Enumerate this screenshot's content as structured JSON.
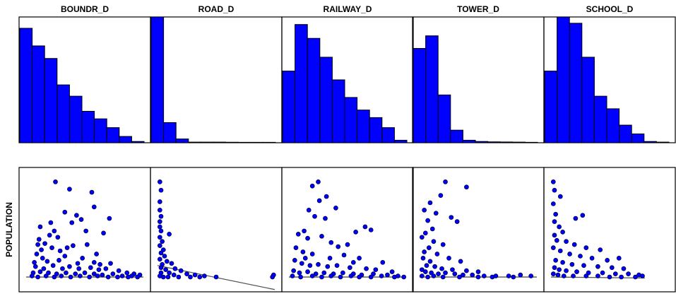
{
  "chart_data": {
    "type": "scatter",
    "variables": [
      "BOUNDR_D",
      "ROAD_D",
      "RAILWAY_D",
      "TOWER_D",
      "SCHOOL_D"
    ],
    "ylabel": "POPULATION",
    "grid": false,
    "colors": {
      "fill": "#0000ff",
      "stroke": "#000033",
      "trend": "#555555"
    },
    "histograms": [
      {
        "name": "BOUNDR_D",
        "bin_heights": [
          0.91,
          0.77,
          0.67,
          0.46,
          0.37,
          0.25,
          0.19,
          0.12,
          0.05,
          0.01
        ]
      },
      {
        "name": "ROAD_D",
        "bin_heights": [
          1.0,
          0.16,
          0.03,
          0.005,
          0.005,
          0.005,
          0.004,
          0.003,
          0.003,
          0.002
        ]
      },
      {
        "name": "RAILWAY_D",
        "bin_heights": [
          0.57,
          0.94,
          0.83,
          0.68,
          0.5,
          0.36,
          0.26,
          0.2,
          0.12,
          0.02
        ]
      },
      {
        "name": "TOWER_D",
        "bin_heights": [
          0.75,
          0.85,
          0.38,
          0.1,
          0.02,
          0.01,
          0.007,
          0.006,
          0.005,
          0.003
        ]
      },
      {
        "name": "SCHOOL_D",
        "bin_heights": [
          0.57,
          1.0,
          0.95,
          0.68,
          0.37,
          0.27,
          0.14,
          0.07,
          0.01,
          0.005
        ]
      }
    ],
    "scatter_plots": [
      {
        "name": "BOUNDR_D",
        "trend": [
          [
            0.0,
            0.02
          ],
          [
            1.0,
            0.02
          ]
        ],
        "points": [
          [
            0.25,
            0.93
          ],
          [
            0.37,
            0.86
          ],
          [
            0.56,
            0.83
          ],
          [
            0.58,
            0.69
          ],
          [
            0.33,
            0.64
          ],
          [
            0.43,
            0.61
          ],
          [
            0.47,
            0.57
          ],
          [
            0.71,
            0.58
          ],
          [
            0.21,
            0.54
          ],
          [
            0.12,
            0.5
          ],
          [
            0.24,
            0.46
          ],
          [
            0.39,
            0.54
          ],
          [
            0.2,
            0.42
          ],
          [
            0.11,
            0.38
          ],
          [
            0.16,
            0.34
          ],
          [
            0.27,
            0.4
          ],
          [
            0.51,
            0.46
          ],
          [
            0.66,
            0.44
          ],
          [
            0.22,
            0.3
          ],
          [
            0.29,
            0.27
          ],
          [
            0.13,
            0.28
          ],
          [
            0.4,
            0.32
          ],
          [
            0.52,
            0.33
          ],
          [
            0.14,
            0.2
          ],
          [
            0.09,
            0.24
          ],
          [
            0.18,
            0.17
          ],
          [
            0.33,
            0.22
          ],
          [
            0.48,
            0.2
          ],
          [
            0.58,
            0.16
          ],
          [
            0.72,
            0.15
          ],
          [
            0.08,
            0.12
          ],
          [
            0.15,
            0.1
          ],
          [
            0.23,
            0.13
          ],
          [
            0.31,
            0.1
          ],
          [
            0.37,
            0.12
          ],
          [
            0.45,
            0.1
          ],
          [
            0.55,
            0.11
          ],
          [
            0.62,
            0.09
          ],
          [
            0.68,
            0.1
          ],
          [
            0.79,
            0.08
          ],
          [
            0.86,
            0.06
          ],
          [
            0.92,
            0.05
          ],
          [
            0.97,
            0.04
          ],
          [
            0.06,
            0.06
          ],
          [
            0.12,
            0.07
          ],
          [
            0.19,
            0.06
          ],
          [
            0.26,
            0.05
          ],
          [
            0.34,
            0.06
          ],
          [
            0.42,
            0.05
          ],
          [
            0.5,
            0.06
          ],
          [
            0.58,
            0.05
          ],
          [
            0.65,
            0.04
          ],
          [
            0.74,
            0.05
          ],
          [
            0.82,
            0.03
          ],
          [
            0.9,
            0.03
          ],
          [
            0.05,
            0.03
          ],
          [
            0.1,
            0.02
          ],
          [
            0.17,
            0.03
          ],
          [
            0.24,
            0.02
          ],
          [
            0.3,
            0.03
          ],
          [
            0.38,
            0.02
          ],
          [
            0.46,
            0.03
          ],
          [
            0.54,
            0.02
          ],
          [
            0.61,
            0.03
          ],
          [
            0.7,
            0.02
          ],
          [
            0.78,
            0.02
          ],
          [
            0.87,
            0.02
          ],
          [
            0.95,
            0.02
          ],
          [
            0.07,
            0.16
          ],
          [
            0.28,
            0.18
          ],
          [
            0.44,
            0.15
          ],
          [
            0.63,
            0.14
          ],
          [
            0.35,
            0.3
          ],
          [
            0.1,
            0.33
          ],
          [
            0.6,
            0.24
          ]
        ]
      },
      {
        "name": "ROAD_D",
        "trend": [
          [
            0.0,
            0.13
          ],
          [
            1.0,
            -0.1
          ]
        ],
        "points": [
          [
            0.02,
            0.93
          ],
          [
            0.03,
            0.85
          ],
          [
            0.02,
            0.74
          ],
          [
            0.02,
            0.66
          ],
          [
            0.03,
            0.6
          ],
          [
            0.02,
            0.55
          ],
          [
            0.1,
            0.43
          ],
          [
            0.02,
            0.5
          ],
          [
            0.03,
            0.46
          ],
          [
            0.02,
            0.4
          ],
          [
            0.04,
            0.36
          ],
          [
            0.02,
            0.32
          ],
          [
            0.05,
            0.28
          ],
          [
            0.03,
            0.25
          ],
          [
            0.06,
            0.22
          ],
          [
            0.02,
            0.19
          ],
          [
            0.08,
            0.17
          ],
          [
            0.12,
            0.15
          ],
          [
            0.04,
            0.14
          ],
          [
            0.15,
            0.1
          ],
          [
            0.03,
            0.11
          ],
          [
            0.07,
            0.09
          ],
          [
            0.2,
            0.08
          ],
          [
            0.1,
            0.06
          ],
          [
            0.25,
            0.05
          ],
          [
            0.03,
            0.06
          ],
          [
            0.14,
            0.04
          ],
          [
            0.32,
            0.04
          ],
          [
            0.4,
            0.03
          ],
          [
            0.02,
            0.03
          ],
          [
            0.05,
            0.02
          ],
          [
            0.09,
            0.02
          ],
          [
            0.18,
            0.02
          ],
          [
            0.28,
            0.02
          ],
          [
            0.36,
            0.02
          ],
          [
            0.5,
            0.02
          ],
          [
            0.99,
            0.04
          ],
          [
            0.98,
            0.02
          ]
        ]
      },
      {
        "name": "RAILWAY_D",
        "trend": [
          [
            0.0,
            0.02
          ],
          [
            1.0,
            0.02
          ]
        ],
        "points": [
          [
            0.25,
            0.93
          ],
          [
            0.2,
            0.89
          ],
          [
            0.32,
            0.79
          ],
          [
            0.26,
            0.75
          ],
          [
            0.4,
            0.68
          ],
          [
            0.17,
            0.66
          ],
          [
            0.22,
            0.6
          ],
          [
            0.31,
            0.58
          ],
          [
            0.65,
            0.5
          ],
          [
            0.7,
            0.47
          ],
          [
            0.57,
            0.45
          ],
          [
            0.13,
            0.46
          ],
          [
            0.08,
            0.43
          ],
          [
            0.16,
            0.39
          ],
          [
            0.28,
            0.41
          ],
          [
            0.36,
            0.35
          ],
          [
            0.42,
            0.31
          ],
          [
            0.5,
            0.33
          ],
          [
            0.06,
            0.3
          ],
          [
            0.12,
            0.26
          ],
          [
            0.2,
            0.24
          ],
          [
            0.47,
            0.23
          ],
          [
            0.6,
            0.2
          ],
          [
            0.8,
            0.16
          ],
          [
            0.05,
            0.18
          ],
          [
            0.11,
            0.15
          ],
          [
            0.18,
            0.13
          ],
          [
            0.25,
            0.14
          ],
          [
            0.33,
            0.12
          ],
          [
            0.41,
            0.13
          ],
          [
            0.52,
            0.11
          ],
          [
            0.66,
            0.1
          ],
          [
            0.74,
            0.09
          ],
          [
            0.88,
            0.07
          ],
          [
            0.04,
            0.08
          ],
          [
            0.09,
            0.06
          ],
          [
            0.16,
            0.07
          ],
          [
            0.23,
            0.05
          ],
          [
            0.3,
            0.06
          ],
          [
            0.38,
            0.05
          ],
          [
            0.46,
            0.06
          ],
          [
            0.55,
            0.05
          ],
          [
            0.62,
            0.04
          ],
          [
            0.72,
            0.05
          ],
          [
            0.84,
            0.04
          ],
          [
            0.93,
            0.03
          ],
          [
            0.98,
            0.02
          ],
          [
            0.03,
            0.03
          ],
          [
            0.1,
            0.02
          ],
          [
            0.2,
            0.03
          ],
          [
            0.28,
            0.02
          ],
          [
            0.36,
            0.03
          ],
          [
            0.44,
            0.02
          ],
          [
            0.53,
            0.03
          ],
          [
            0.6,
            0.02
          ],
          [
            0.7,
            0.02
          ],
          [
            0.79,
            0.03
          ],
          [
            0.9,
            0.02
          ],
          [
            0.14,
            0.2
          ],
          [
            0.35,
            0.2
          ],
          [
            0.55,
            0.16
          ]
        ]
      },
      {
        "name": "TOWER_D",
        "trend": [
          [
            0.0,
            0.02
          ],
          [
            1.0,
            0.02
          ]
        ],
        "points": [
          [
            0.22,
            0.93
          ],
          [
            0.4,
            0.88
          ],
          [
            0.18,
            0.8
          ],
          [
            0.09,
            0.73
          ],
          [
            0.04,
            0.66
          ],
          [
            0.14,
            0.63
          ],
          [
            0.27,
            0.59
          ],
          [
            0.32,
            0.55
          ],
          [
            0.07,
            0.56
          ],
          [
            0.11,
            0.48
          ],
          [
            0.05,
            0.44
          ],
          [
            0.02,
            0.4
          ],
          [
            0.12,
            0.36
          ],
          [
            0.2,
            0.33
          ],
          [
            0.08,
            0.3
          ],
          [
            0.04,
            0.26
          ],
          [
            0.15,
            0.24
          ],
          [
            0.25,
            0.2
          ],
          [
            0.35,
            0.17
          ],
          [
            0.03,
            0.2
          ],
          [
            0.09,
            0.17
          ],
          [
            0.06,
            0.13
          ],
          [
            0.13,
            0.12
          ],
          [
            0.19,
            0.1
          ],
          [
            0.28,
            0.09
          ],
          [
            0.4,
            0.08
          ],
          [
            0.5,
            0.07
          ],
          [
            0.02,
            0.09
          ],
          [
            0.05,
            0.07
          ],
          [
            0.1,
            0.06
          ],
          [
            0.16,
            0.05
          ],
          [
            0.22,
            0.06
          ],
          [
            0.3,
            0.05
          ],
          [
            0.37,
            0.04
          ],
          [
            0.45,
            0.04
          ],
          [
            0.55,
            0.03
          ],
          [
            0.65,
            0.03
          ],
          [
            0.76,
            0.03
          ],
          [
            0.86,
            0.04
          ],
          [
            0.95,
            0.03
          ],
          [
            0.02,
            0.03
          ],
          [
            0.07,
            0.02
          ],
          [
            0.12,
            0.03
          ],
          [
            0.2,
            0.02
          ],
          [
            0.34,
            0.02
          ],
          [
            0.5,
            0.02
          ],
          [
            0.62,
            0.02
          ],
          [
            0.8,
            0.02
          ]
        ]
      },
      {
        "name": "SCHOOL_D",
        "trend": [
          [
            0.0,
            0.02
          ],
          [
            0.8,
            0.01
          ]
        ],
        "points": [
          [
            0.02,
            0.93
          ],
          [
            0.03,
            0.85
          ],
          [
            0.08,
            0.79
          ],
          [
            0.02,
            0.72
          ],
          [
            0.21,
            0.58
          ],
          [
            0.27,
            0.61
          ],
          [
            0.04,
            0.62
          ],
          [
            0.03,
            0.55
          ],
          [
            0.07,
            0.5
          ],
          [
            0.1,
            0.45
          ],
          [
            0.03,
            0.42
          ],
          [
            0.05,
            0.37
          ],
          [
            0.13,
            0.36
          ],
          [
            0.2,
            0.33
          ],
          [
            0.3,
            0.3
          ],
          [
            0.42,
            0.28
          ],
          [
            0.02,
            0.3
          ],
          [
            0.08,
            0.27
          ],
          [
            0.16,
            0.24
          ],
          [
            0.25,
            0.22
          ],
          [
            0.35,
            0.2
          ],
          [
            0.48,
            0.18
          ],
          [
            0.58,
            0.2
          ],
          [
            0.04,
            0.18
          ],
          [
            0.1,
            0.16
          ],
          [
            0.18,
            0.14
          ],
          [
            0.28,
            0.13
          ],
          [
            0.4,
            0.12
          ],
          [
            0.52,
            0.11
          ],
          [
            0.62,
            0.1
          ],
          [
            0.03,
            0.11
          ],
          [
            0.07,
            0.09
          ],
          [
            0.13,
            0.08
          ],
          [
            0.22,
            0.07
          ],
          [
            0.32,
            0.06
          ],
          [
            0.44,
            0.06
          ],
          [
            0.55,
            0.05
          ],
          [
            0.66,
            0.05
          ],
          [
            0.75,
            0.04
          ],
          [
            0.02,
            0.05
          ],
          [
            0.06,
            0.04
          ],
          [
            0.11,
            0.03
          ],
          [
            0.19,
            0.03
          ],
          [
            0.3,
            0.03
          ],
          [
            0.4,
            0.03
          ],
          [
            0.5,
            0.02
          ],
          [
            0.6,
            0.02
          ],
          [
            0.72,
            0.02
          ],
          [
            0.78,
            0.03
          ]
        ]
      }
    ]
  }
}
